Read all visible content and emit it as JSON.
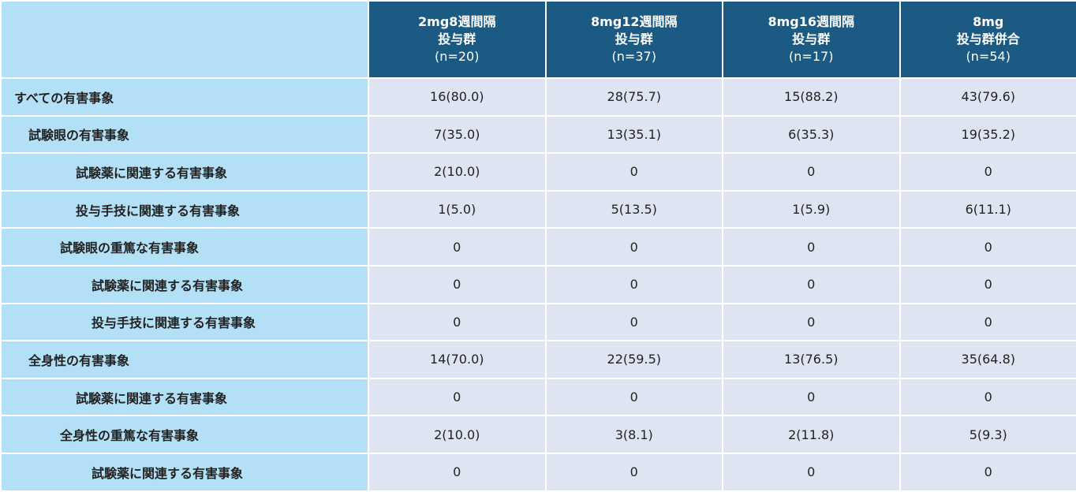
{
  "columns": [
    {
      "line1": "2mg8週間隔",
      "line2": "投与群",
      "line3": "(n=20)"
    },
    {
      "line1": "8mg12週間隔",
      "line2": "投与群",
      "line3": "(n=37)"
    },
    {
      "line1": "8mg16週間隔",
      "line2": "投与群",
      "line3": "(n=17)"
    },
    {
      "line1": "8mg",
      "line2": "投与群併合",
      "line3": "(n=54)"
    }
  ],
  "rows": [
    {
      "label": "すべての有害事象",
      "level": 0,
      "values": [
        "16(80.0)",
        "28(75.7)",
        "15(88.2)",
        "43(79.6)"
      ]
    },
    {
      "label": "試験眼の有害事象",
      "level": 1,
      "values": [
        "7(35.0)",
        "13(35.1)",
        "6(35.3)",
        "19(35.2)"
      ]
    },
    {
      "label": "試験薬に関連する有害事象",
      "level": 2,
      "values": [
        "2(10.0)",
        "0",
        "0",
        "0"
      ]
    },
    {
      "label": "投与手技に関連する有害事象",
      "level": 2,
      "values": [
        "1(5.0)",
        "5(13.5)",
        "1(5.9)",
        "6(11.1)"
      ]
    },
    {
      "label": "試験眼の重篤な有害事象",
      "level": 1.5,
      "values": [
        "0",
        "0",
        "0",
        "0"
      ]
    },
    {
      "label": "試験薬に関連する有害事象",
      "level": 3,
      "values": [
        "0",
        "0",
        "0",
        "0"
      ]
    },
    {
      "label": "投与手技に関連する有害事象",
      "level": 3,
      "values": [
        "0",
        "0",
        "0",
        "0"
      ]
    },
    {
      "label": "全身性の有害事象",
      "level": 1,
      "values": [
        "14(70.0)",
        "22(59.5)",
        "13(76.5)",
        "35(64.8)"
      ]
    },
    {
      "label": "試験薬に関連する有害事象",
      "level": 2,
      "values": [
        "0",
        "0",
        "0",
        "0"
      ]
    },
    {
      "label": "全身性の重篤な有害事象",
      "level": 1.5,
      "values": [
        "2(10.0)",
        "3(8.1)",
        "2(11.8)",
        "5(9.3)"
      ]
    },
    {
      "label": "試験薬に関連する有害事象",
      "level": 3,
      "values": [
        "0",
        "0",
        "0",
        "0"
      ]
    }
  ],
  "colors": {
    "header_bg": "#1a5a83",
    "label_bg": "#b3e0f6",
    "cell_bg": "#dfe4f3"
  }
}
